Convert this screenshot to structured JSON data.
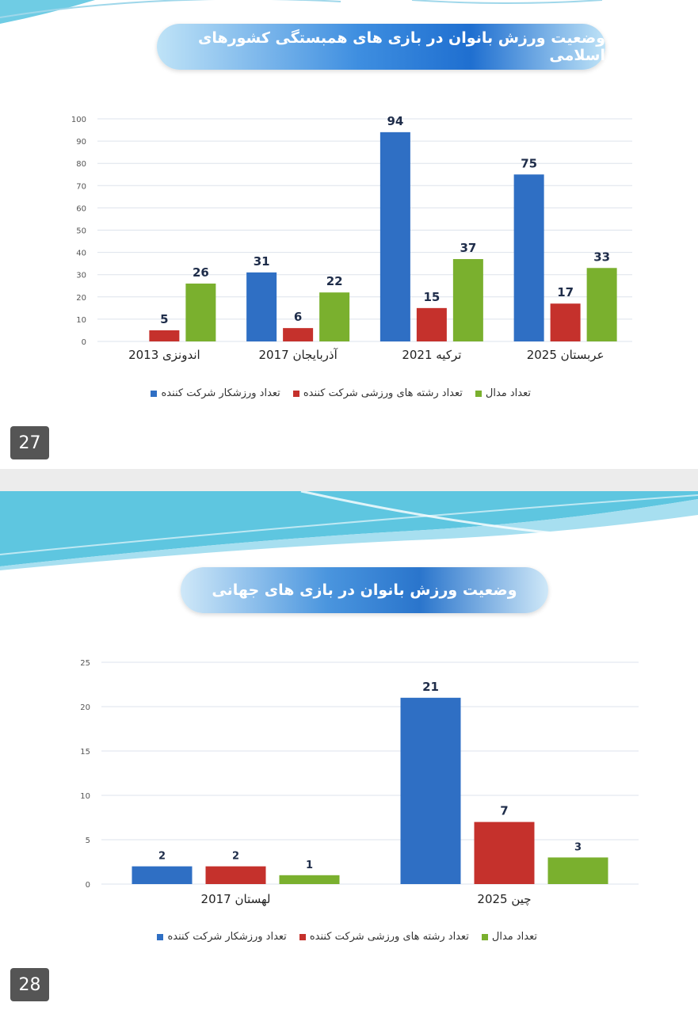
{
  "slides": [
    {
      "title": "وضعیت ورزش بانوان در بازی های همبستگی کشورهای اسلامی",
      "page_number": "27"
    },
    {
      "title": "وضعیت ورزش بانوان در بازی های جهانی",
      "page_number": "28"
    }
  ],
  "legend": {
    "athletes": "تعداد ورزشکار شرکت کننده",
    "sports": "تعداد رشته های ورزشی شرکت کننده",
    "medals": "تعداد مدال"
  },
  "colors": {
    "athletes": "#2f6fc4",
    "sports": "#c5312c",
    "medals": "#7ab02e"
  },
  "chart_data": [
    {
      "type": "bar",
      "title": "وضعیت ورزش بانوان در بازی های همبستگی کشورهای اسلامی",
      "categories": [
        "2013 اندونزی",
        "2017 آذربایجان",
        "2021 ترکیه",
        "2025 عربستان"
      ],
      "series": [
        {
          "name": "تعداد ورزشکار شرکت کننده",
          "values": [
            null,
            31,
            94,
            75
          ]
        },
        {
          "name": "تعداد رشته های ورزشی شرکت کننده",
          "values": [
            5,
            6,
            15,
            17
          ]
        },
        {
          "name": "تعداد مدال",
          "values": [
            26,
            22,
            37,
            33
          ]
        }
      ],
      "ylim": [
        0,
        100
      ],
      "yticks": [
        0,
        10,
        20,
        30,
        40,
        50,
        60,
        70,
        80,
        90,
        100
      ],
      "grid": true,
      "legend_position": "bottom"
    },
    {
      "type": "bar",
      "title": "وضعیت ورزش بانوان در بازی های جهانی",
      "categories": [
        "2017 لهستان",
        "2025 چین"
      ],
      "series": [
        {
          "name": "تعداد ورزشکار شرکت کننده",
          "values": [
            2,
            21
          ]
        },
        {
          "name": "تعداد رشته های ورزشی شرکت کننده",
          "values": [
            2,
            7
          ]
        },
        {
          "name": "تعداد مدال",
          "values": [
            1,
            3
          ]
        }
      ],
      "ylim": [
        0,
        25
      ],
      "yticks": [
        0,
        5,
        10,
        15,
        20,
        25
      ],
      "grid": true,
      "legend_position": "bottom"
    }
  ]
}
